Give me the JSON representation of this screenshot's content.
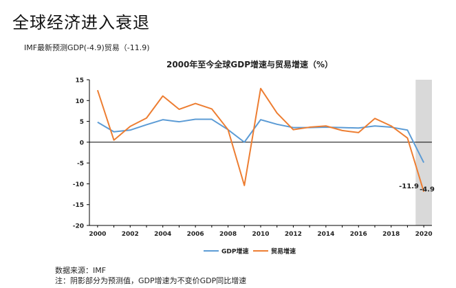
{
  "slide": {
    "title": "全球经济进入衰退",
    "subtitle": "IMF最新预测GDP(-4.9)贸易（-11.9)"
  },
  "colors": {
    "gdp": "#5b9bd5",
    "trade": "#ed7d31",
    "forecast_shade": "#d9d9d9",
    "axis": "#000000"
  },
  "chart_data": {
    "type": "line",
    "title": "2000年至今全球GDP增速与贸易增速（%）",
    "x": [
      2000,
      2001,
      2002,
      2003,
      2004,
      2005,
      2006,
      2007,
      2008,
      2009,
      2010,
      2011,
      2012,
      2013,
      2014,
      2015,
      2016,
      2017,
      2018,
      2019,
      2020
    ],
    "x_tick_labels": [
      "2000",
      "2002",
      "2004",
      "2006",
      "2008",
      "2010",
      "2012",
      "2014",
      "2016",
      "2018",
      "2020"
    ],
    "x_tick_values": [
      2000,
      2002,
      2004,
      2006,
      2008,
      2010,
      2012,
      2014,
      2016,
      2018,
      2020
    ],
    "xlim": [
      1999.5,
      2020.5
    ],
    "ylim": [
      -20,
      15
    ],
    "y_ticks": [
      15,
      10,
      5,
      0,
      -5,
      -10,
      -15,
      -20
    ],
    "y_tick_labels": [
      "15",
      "10",
      "5",
      "0",
      "-5",
      "-10",
      "-15",
      "-20"
    ],
    "series": [
      {
        "name": "GDP增速",
        "color": "#5b9bd5",
        "values": [
          4.8,
          2.5,
          2.9,
          4.2,
          5.4,
          4.9,
          5.5,
          5.5,
          3.0,
          0.0,
          5.4,
          4.3,
          3.5,
          3.5,
          3.6,
          3.5,
          3.4,
          3.9,
          3.6,
          2.9,
          -4.9
        ]
      },
      {
        "name": "贸易增速",
        "color": "#ed7d31",
        "values": [
          12.5,
          0.5,
          3.8,
          5.8,
          11.1,
          7.9,
          9.3,
          8.0,
          3.0,
          -10.4,
          12.9,
          7.0,
          3.0,
          3.6,
          3.9,
          2.8,
          2.3,
          5.7,
          3.9,
          1.0,
          -11.9
        ]
      }
    ],
    "forecast_shade_range": [
      2019.5,
      2020.5
    ],
    "annotations": [
      {
        "text": "-4.9",
        "x": 2020,
        "y": -4.9,
        "series": "GDP增速"
      },
      {
        "text": "-11.9",
        "x": 2020,
        "y": -11.9,
        "series": "贸易增速"
      }
    ],
    "legend_position": "bottom-center"
  },
  "footer": {
    "source": "数据来源：IMF",
    "note": "注：阴影部分为预测值，GDP增速为不变价GDP同比增速"
  }
}
